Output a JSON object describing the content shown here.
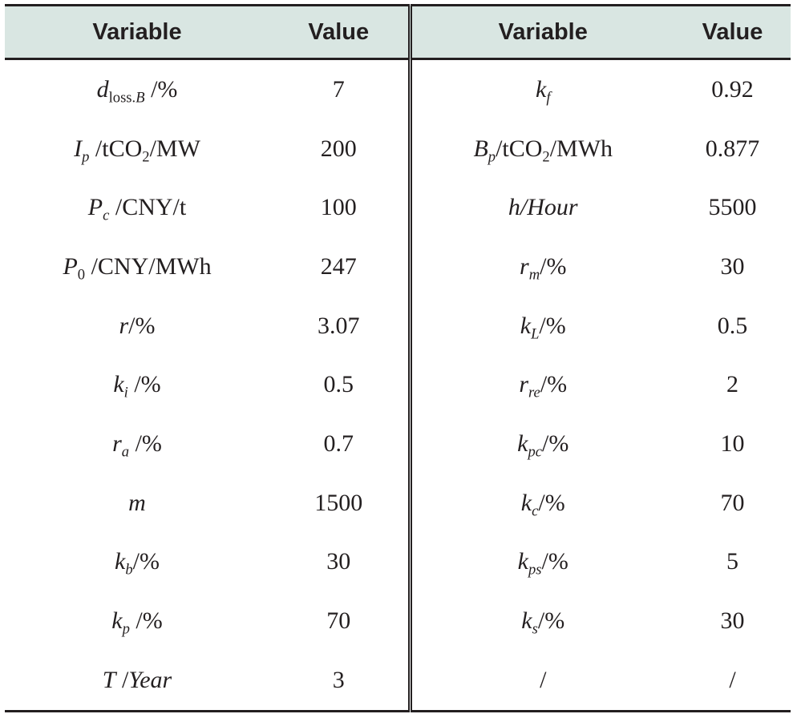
{
  "table": {
    "headers": [
      "Variable",
      "Value",
      "Variable",
      "Value"
    ],
    "rows": [
      {
        "left_sym": "d",
        "left_sub": "loss.",
        "left_sub2": "B",
        "left_unit": " /%",
        "left_value": "7",
        "right_sym": "k",
        "right_sub": "f",
        "right_unit": "",
        "right_value": "0.92"
      },
      {
        "left_sym": "I",
        "left_sub": "p",
        "left_unit": " /tCO",
        "left_unit_sub": "2",
        "left_unit2": "/MW",
        "left_value": "200",
        "right_sym": "B",
        "right_sub": "p",
        "right_unit": "/tCO",
        "right_unit_sub": "2",
        "right_unit2": "/MWh",
        "right_value": "0.877"
      },
      {
        "left_sym": "P",
        "left_sub": "c",
        "left_unit": " /CNY/t",
        "left_value": "100",
        "right_sym": "h/Hour",
        "right_value": "5500"
      },
      {
        "left_sym": "P",
        "left_sub": "0",
        "left_unit": " /CNY/MWh",
        "left_value": "247",
        "right_sym": "r",
        "right_sub": "m",
        "right_unit": "/%",
        "right_value": "30"
      },
      {
        "left_sym": "r",
        "left_unit": "/%",
        "left_value": "3.07",
        "right_sym": "k",
        "right_sub": "L",
        "right_unit": "/%",
        "right_value": "0.5"
      },
      {
        "left_sym": "k",
        "left_sub": "i",
        "left_unit": " /%",
        "left_value": "0.5",
        "right_sym": "r",
        "right_sub": "re",
        "right_unit": "/%",
        "right_value": "2"
      },
      {
        "left_sym": "r",
        "left_sub": "a",
        "left_unit": " /%",
        "left_value": "0.7",
        "right_sym": "k",
        "right_sub": "pc",
        "right_unit": "/%",
        "right_value": "10"
      },
      {
        "left_sym": "m",
        "left_value": "1500",
        "right_sym": "k",
        "right_sub": "c",
        "right_unit": "/%",
        "right_value": "70"
      },
      {
        "left_sym": "k",
        "left_sub": "b",
        "left_unit": "/%",
        "left_value": "30",
        "right_sym": "k",
        "right_sub": "ps",
        "right_unit": "/%",
        "right_value": "5"
      },
      {
        "left_sym": "k",
        "left_sub": "p",
        "left_unit": " /%",
        "left_value": "70",
        "right_sym": "k",
        "right_sub": "s",
        "right_unit": "/%",
        "right_value": "30"
      },
      {
        "left_sym": "T",
        "left_unit": " /",
        "left_sym2": "Year",
        "left_value": "3",
        "right_plain": "/",
        "right_value": "/"
      }
    ]
  }
}
